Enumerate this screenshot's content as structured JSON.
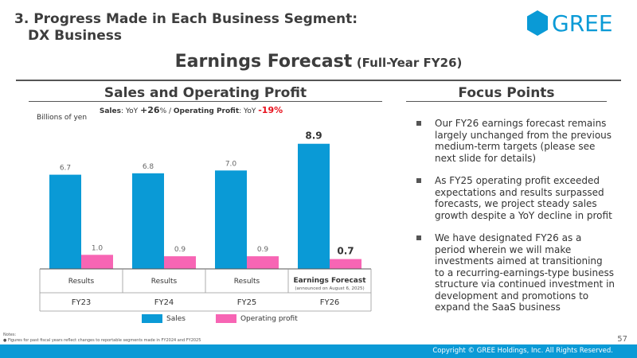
{
  "header": {
    "section_title_line1": "3. Progress Made in Each Business Segment:",
    "section_title_line2": "DX Business",
    "logo_text": "GREE",
    "main_title": "Earnings Forecast",
    "main_title_sub": "(Full-Year FY26)"
  },
  "left_panel": {
    "heading": "Sales and Operating Profit",
    "yoy_sales_label": "Sales",
    "yoy_prefix": ": YoY ",
    "yoy_sales_value": "+26",
    "yoy_sep": "% / ",
    "yoy_op_label": "Operating Profit",
    "yoy_op_prefix": ": YoY ",
    "yoy_op_value": "-19",
    "yoy_suffix": "%",
    "unit": "Billions of yen"
  },
  "chart_data": {
    "type": "bar",
    "categories": [
      "FY23",
      "FY24",
      "FY25",
      "FY26"
    ],
    "category_types": [
      "Results",
      "Results",
      "Results",
      "Earnings Forecast"
    ],
    "forecast_note": "(announced on August 6, 2025)",
    "series": [
      {
        "name": "Sales",
        "color": "#0a9ad6",
        "values": [
          6.7,
          6.8,
          7.0,
          8.9
        ],
        "labels": [
          "6.7",
          "6.8",
          "7.0",
          "8.9"
        ]
      },
      {
        "name": "Operating profit",
        "color": "#f765b4",
        "values": [
          1.0,
          0.9,
          0.9,
          0.7
        ],
        "labels": [
          "1.0",
          "0.9",
          "0.9",
          "0.7"
        ]
      }
    ],
    "ylim": [
      0,
      10
    ],
    "highlight_index": 3
  },
  "right_panel": {
    "heading": "Focus Points",
    "points": [
      "Our FY26 earnings forecast remains largely unchanged from the previous medium-term targets (please see next slide for details)",
      "As FY25 operating profit exceeded expectations and results surpassed forecasts, we project steady sales growth despite a YoY decline in profit",
      "We have designated FY26 as a period wherein we will make investments aimed at transitioning to a recurring-earnings-type business structure via continued investment in development and promotions to expand the SaaS business"
    ]
  },
  "footer": {
    "notes_title": "Notes:",
    "notes_item": "Figures for past fiscal years reflect changes to reportable segments made in FY2024 and FY2025",
    "page_number": "57",
    "copyright": "Copyright © GREE Holdings, Inc. All Rights Reserved."
  },
  "colors": {
    "accent": "#0a9ad6",
    "pink": "#f765b4",
    "red": "#e8101c"
  }
}
